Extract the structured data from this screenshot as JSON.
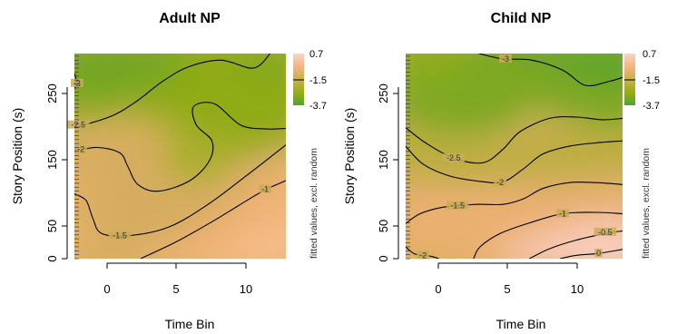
{
  "colors": {
    "high": "#fbd3c8",
    "mid_high": "#f5b47f",
    "mid": "#c8b24a",
    "mid_low": "#98ae10",
    "low": "#50a330",
    "contour": "#000000",
    "contour_label": "#444444"
  },
  "chart_data": [
    {
      "type": "heatmap",
      "title": "Adult NP",
      "xlabel": "Time Bin",
      "ylabel": "Story Position (s)",
      "xlim": [
        -2.3,
        14
      ],
      "ylim": [
        0,
        310
      ],
      "x_ticks": [
        0,
        5,
        10
      ],
      "y_ticks": [
        0,
        50,
        150,
        250
      ],
      "colorbar": {
        "label": "fitted values, excl. random",
        "ticks": [
          "0.7",
          "-1.5",
          "-3.7"
        ],
        "values": [
          0.7,
          -1.5,
          -3.7
        ]
      },
      "contours": [
        {
          "level": -3,
          "label": "-3",
          "label_at": [
            -2.1,
            265
          ],
          "points": [
            [
              -2.3,
              280
            ],
            [
              -2.15,
              268
            ],
            [
              -2.3,
              256
            ]
          ]
        },
        {
          "level": -2.5,
          "label": "-2.5",
          "label_at": [
            -2.0,
            202
          ],
          "points": [
            [
              -2.3,
              198
            ],
            [
              0.5,
              215
            ],
            [
              2.5,
              238
            ],
            [
              4.5,
              268
            ],
            [
              6.5,
              290
            ],
            [
              9,
              300
            ],
            [
              11.5,
              288
            ],
            [
              12.8,
              310
            ]
          ]
        },
        {
          "level": -2,
          "label": "-2",
          "label_at": [
            -1.8,
            165
          ],
          "points": [
            [
              -2.3,
              163
            ],
            [
              -0.5,
              168
            ],
            [
              1.2,
              160
            ],
            [
              1.8,
              140
            ],
            [
              2.6,
              112
            ],
            [
              4.2,
              102
            ],
            [
              6.6,
              118
            ],
            [
              8.1,
              148
            ],
            [
              8.3,
              178
            ],
            [
              7.1,
              202
            ],
            [
              6.9,
              230
            ],
            [
              8.5,
              234
            ],
            [
              10.5,
              202
            ],
            [
              12.5,
              196
            ],
            [
              14,
              197
            ]
          ]
        },
        {
          "level": -1.5,
          "label": "-1.5",
          "label_at": [
            1.2,
            35
          ],
          "points": [
            [
              -2.3,
              98
            ],
            [
              -1.4,
              88
            ],
            [
              -0.9,
              62
            ],
            [
              -0.2,
              38
            ],
            [
              2,
              35
            ],
            [
              5,
              48
            ],
            [
              8,
              82
            ],
            [
              11,
              126
            ],
            [
              14,
              172
            ]
          ]
        },
        {
          "level": -1,
          "label": "-1",
          "label_at": [
            12.4,
            105
          ],
          "points": [
            [
              2.8,
              0
            ],
            [
              5.5,
              25
            ],
            [
              8.5,
              58
            ],
            [
              11,
              88
            ],
            [
              12.4,
              104
            ],
            [
              14,
              118
            ]
          ]
        }
      ]
    },
    {
      "type": "heatmap",
      "title": "Child NP",
      "xlabel": "Time Bin",
      "ylabel": "Story Position (s)",
      "xlim": [
        -2.3,
        14
      ],
      "ylim": [
        0,
        310
      ],
      "x_ticks": [
        0,
        5,
        10
      ],
      "y_ticks": [
        0,
        50,
        150,
        250
      ],
      "colorbar": {
        "label": "fitted values, excl. random",
        "ticks": [
          "0.7",
          "-1.5",
          "-3.7"
        ],
        "values": [
          0.7,
          -1.5,
          -3.7
        ]
      },
      "contours": [
        {
          "level": -3,
          "label": "-3",
          "label_at": [
            5.2,
            302
          ],
          "points": [
            [
              3.2,
              310
            ],
            [
              5,
              302
            ],
            [
              7.2,
              300
            ],
            [
              9.5,
              285
            ],
            [
              11.2,
              262
            ],
            [
              13,
              268
            ],
            [
              14,
              274
            ]
          ]
        },
        {
          "level": -2.5,
          "label": "-2.5",
          "label_at": [
            1.3,
            152
          ],
          "points": [
            [
              -2.3,
              198
            ],
            [
              -0.8,
              175
            ],
            [
              1.3,
              152
            ],
            [
              3.5,
              145
            ],
            [
              5,
              165
            ],
            [
              6.3,
              192
            ],
            [
              8.5,
              212
            ],
            [
              10.5,
              214
            ],
            [
              12.5,
              210
            ],
            [
              14,
              212
            ]
          ]
        },
        {
          "level": -2,
          "label": "-2",
          "label_at": [
            4.8,
            115
          ],
          "points": [
            [
              -2.3,
              170
            ],
            [
              -1,
              143
            ],
            [
              1,
              125
            ],
            [
              3.2,
              117
            ],
            [
              5,
              116
            ],
            [
              6.5,
              135
            ],
            [
              8,
              158
            ],
            [
              10,
              170
            ],
            [
              12,
              175
            ],
            [
              14,
              178
            ]
          ]
        },
        {
          "level": -1.5,
          "label": "-1.5",
          "label_at": [
            1.6,
            80
          ],
          "points": [
            [
              -2.3,
              53
            ],
            [
              -1.2,
              68
            ],
            [
              0.6,
              78
            ],
            [
              3,
              82
            ],
            [
              5,
              82
            ],
            [
              6.5,
              90
            ],
            [
              8,
              106
            ],
            [
              10,
              115
            ],
            [
              12,
              115
            ],
            [
              14,
              112
            ]
          ]
        },
        {
          "level": -1,
          "label": "-1",
          "label_at": [
            9.5,
            68
          ],
          "points": [
            [
              2.8,
              0
            ],
            [
              3.3,
              18
            ],
            [
              4.8,
              38
            ],
            [
              7,
              54
            ],
            [
              9.5,
              68
            ],
            [
              12,
              70
            ],
            [
              14,
              68
            ]
          ]
        },
        {
          "level": -0.5,
          "label": "-0.5",
          "label_at": [
            12.7,
            40
          ],
          "points": [
            [
              7,
              0
            ],
            [
              8.5,
              15
            ],
            [
              10.5,
              28
            ],
            [
              12.7,
              38
            ],
            [
              14,
              42
            ]
          ]
        },
        {
          "level": 0,
          "label": "0",
          "label_at": [
            12.2,
            8
          ],
          "points": [
            [
              9.3,
              0
            ],
            [
              10.5,
              5
            ],
            [
              12.2,
              8
            ],
            [
              14,
              14
            ]
          ]
        },
        {
          "level": -2,
          "label": "-2",
          "label_at": [
            -1.0,
            5
          ],
          "points": [
            [
              -2.3,
              18
            ],
            [
              -1.6,
              7
            ],
            [
              -0.5,
              4
            ],
            [
              0.2,
              0
            ]
          ]
        }
      ]
    }
  ]
}
